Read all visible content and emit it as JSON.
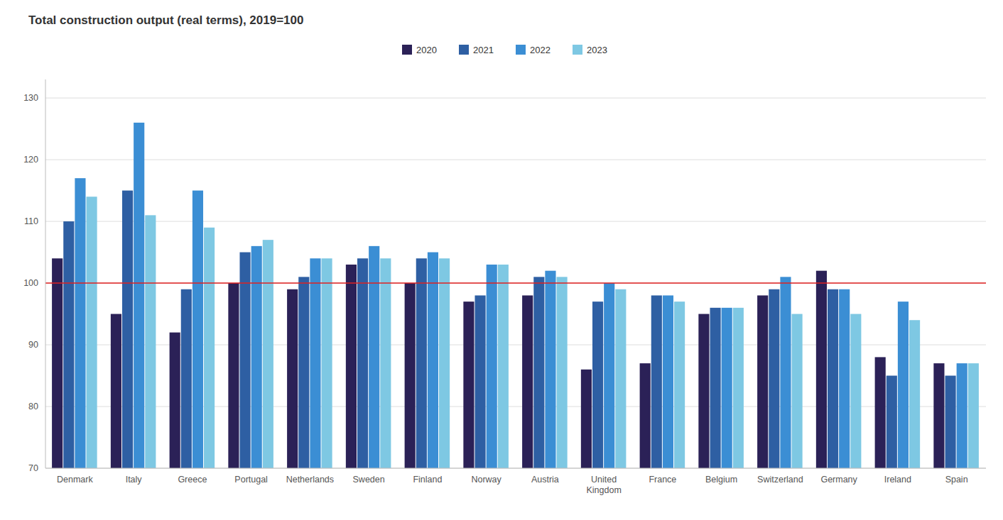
{
  "chart_data": {
    "type": "bar",
    "title": "Total construction output (real terms), 2019=100",
    "categories": [
      "Denmark",
      "Italy",
      "Greece",
      "Portugal",
      "Netherlands",
      "Sweden",
      "Finland",
      "Norway",
      "Austria",
      "United\nKingdom",
      "France",
      "Belgium",
      "Switzerland",
      "Germany",
      "Ireland",
      "Spain"
    ],
    "series": [
      {
        "name": "2020",
        "color": "#2b2157",
        "values": [
          104,
          95,
          92,
          100,
          99,
          103,
          100,
          97,
          98,
          86,
          87,
          95,
          98,
          102,
          88,
          87
        ]
      },
      {
        "name": "2021",
        "color": "#2e5fa3",
        "values": [
          110,
          115,
          99,
          105,
          101,
          104,
          104,
          98,
          101,
          97,
          98,
          96,
          99,
          99,
          85,
          85
        ]
      },
      {
        "name": "2022",
        "color": "#3b8ed4",
        "values": [
          117,
          126,
          115,
          106,
          104,
          106,
          105,
          103,
          102,
          100,
          98,
          96,
          101,
          99,
          97,
          87
        ]
      },
      {
        "name": "2023",
        "color": "#7ec8e3",
        "values": [
          114,
          111,
          109,
          107,
          104,
          104,
          104,
          103,
          101,
          99,
          97,
          96,
          95,
          95,
          94,
          87
        ]
      }
    ],
    "ylim": [
      70,
      133
    ],
    "yticks": [
      70,
      80,
      90,
      100,
      110,
      120,
      130
    ],
    "reference_lines": [
      {
        "value": 100,
        "color": "#e02020"
      }
    ],
    "grid": true,
    "legend": "top"
  }
}
